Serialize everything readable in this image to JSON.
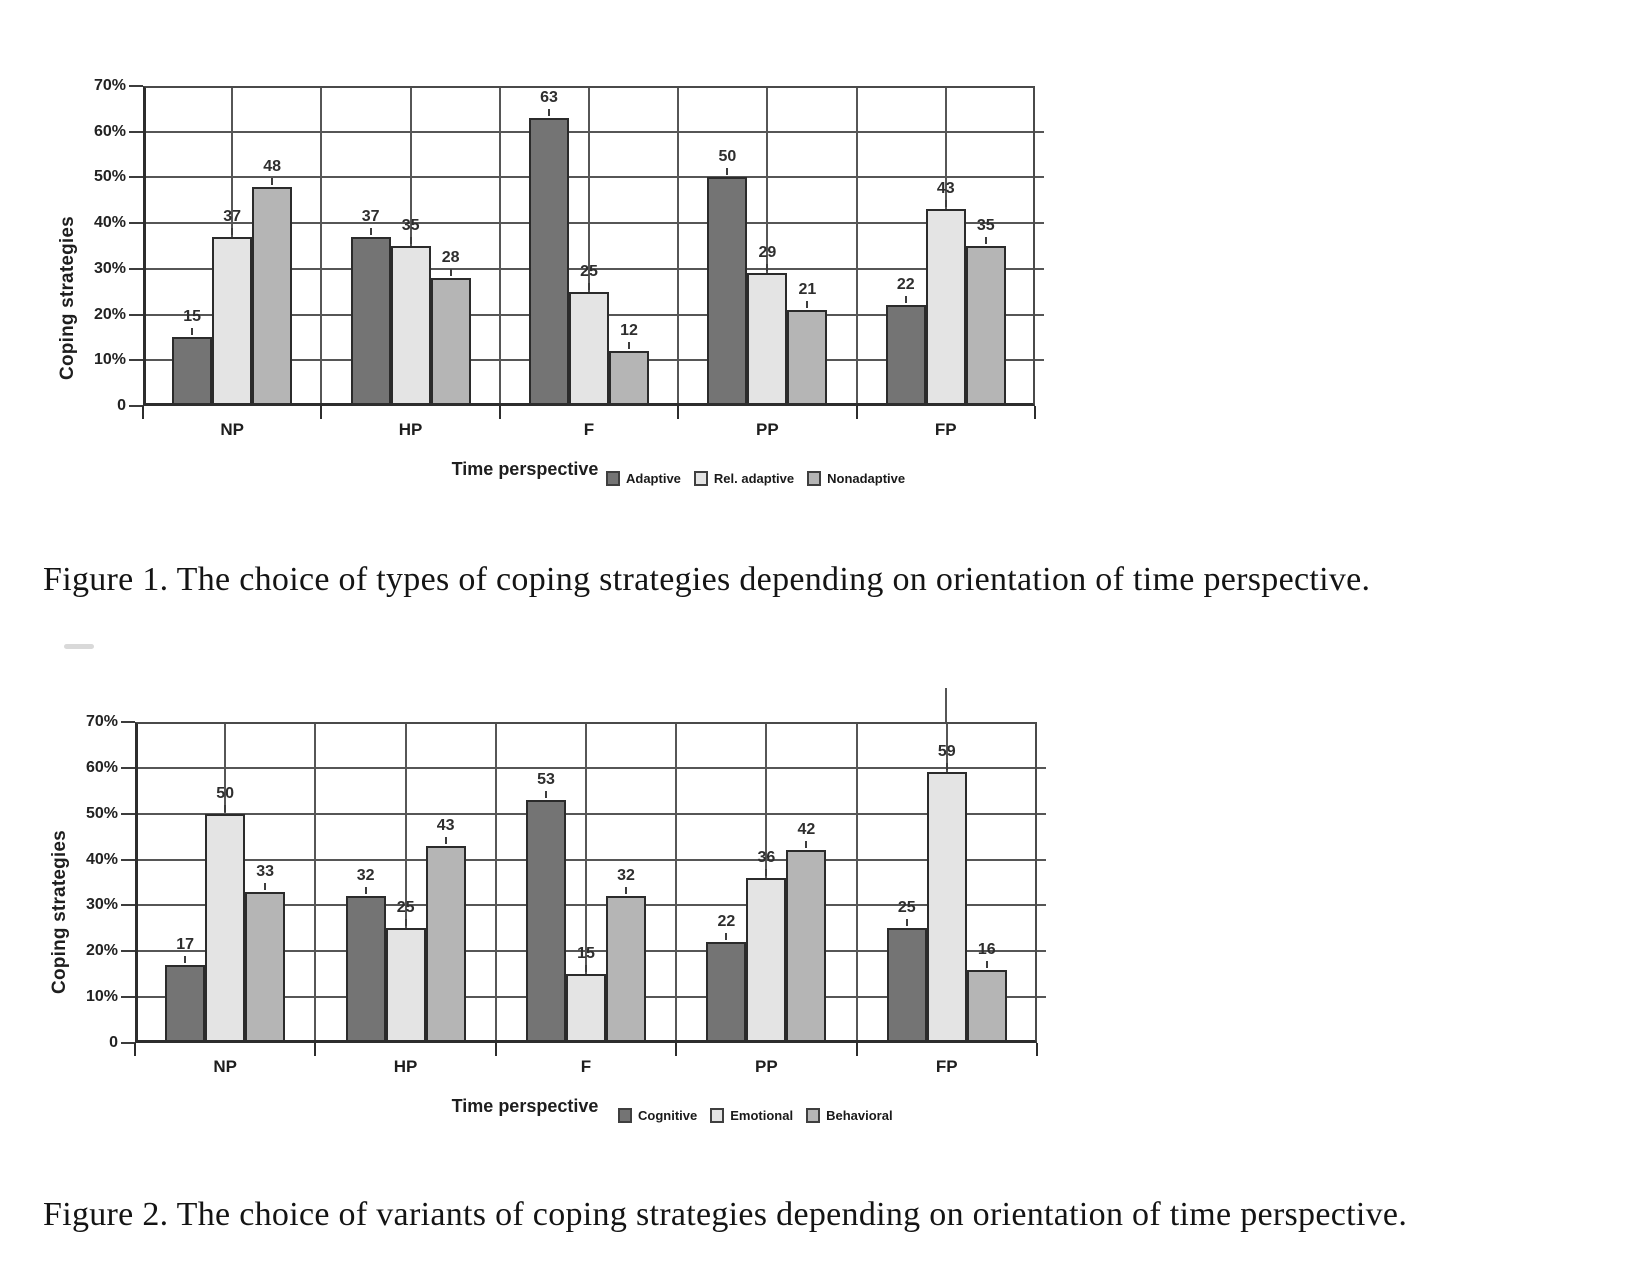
{
  "page": {
    "background": "#ffffff"
  },
  "figure1": {
    "caption": "Figure 1. The choice of types of coping strategies depending on orientation of time perspective."
  },
  "figure2": {
    "caption": "Figure 2. The choice of variants of coping strategies depending on orientation of time perspective."
  },
  "colors": {
    "series_dark": "#747474",
    "series_light": "#e4e4e4",
    "series_medium": "#b5b5b5",
    "grid": "#565656",
    "axis": "#2d2d2d",
    "bar_border": "#2b2b2b",
    "text": "#1e1e1e"
  },
  "chart_data": [
    {
      "type": "bar",
      "title": "",
      "categories": [
        "NP",
        "HP",
        "F",
        "PP",
        "FP"
      ],
      "series": [
        {
          "name": "Adaptive",
          "color": "#747474",
          "values": [
            15,
            37,
            63,
            50,
            22
          ]
        },
        {
          "name": "Rel. adaptive",
          "color": "#e4e4e4",
          "values": [
            37,
            35,
            25,
            29,
            43
          ]
        },
        {
          "name": "Nonadaptive",
          "color": "#b5b5b5",
          "values": [
            48,
            28,
            12,
            21,
            35
          ]
        }
      ],
      "xlabel": "Time perspective",
      "ylabel": "Coping strategies",
      "ylim": [
        0,
        70
      ],
      "ytick_step": 10,
      "ytick_labels": [
        "70%",
        "60%",
        "50%",
        "40%",
        "30%",
        "20%",
        "10%",
        "0"
      ],
      "grid": true,
      "bar_value_labels": true,
      "legend_position": "bottom"
    },
    {
      "type": "bar",
      "title": "",
      "categories": [
        "NP",
        "HP",
        "F",
        "PP",
        "FP"
      ],
      "series": [
        {
          "name": "Cognitive",
          "color": "#747474",
          "values": [
            17,
            32,
            53,
            22,
            25
          ]
        },
        {
          "name": "Emotional",
          "color": "#e4e4e4",
          "values": [
            50,
            25,
            15,
            36,
            59
          ]
        },
        {
          "name": "Behavioral",
          "color": "#b5b5b5",
          "values": [
            33,
            43,
            32,
            42,
            16
          ]
        }
      ],
      "xlabel": "Time perspective",
      "ylabel": "Coping strategies",
      "ylim": [
        0,
        70
      ],
      "ytick_step": 10,
      "ytick_labels": [
        "70%",
        "60%",
        "50%",
        "40%",
        "30%",
        "20%",
        "10%",
        "0"
      ],
      "grid": true,
      "bar_value_labels": true,
      "legend_position": "bottom"
    }
  ]
}
